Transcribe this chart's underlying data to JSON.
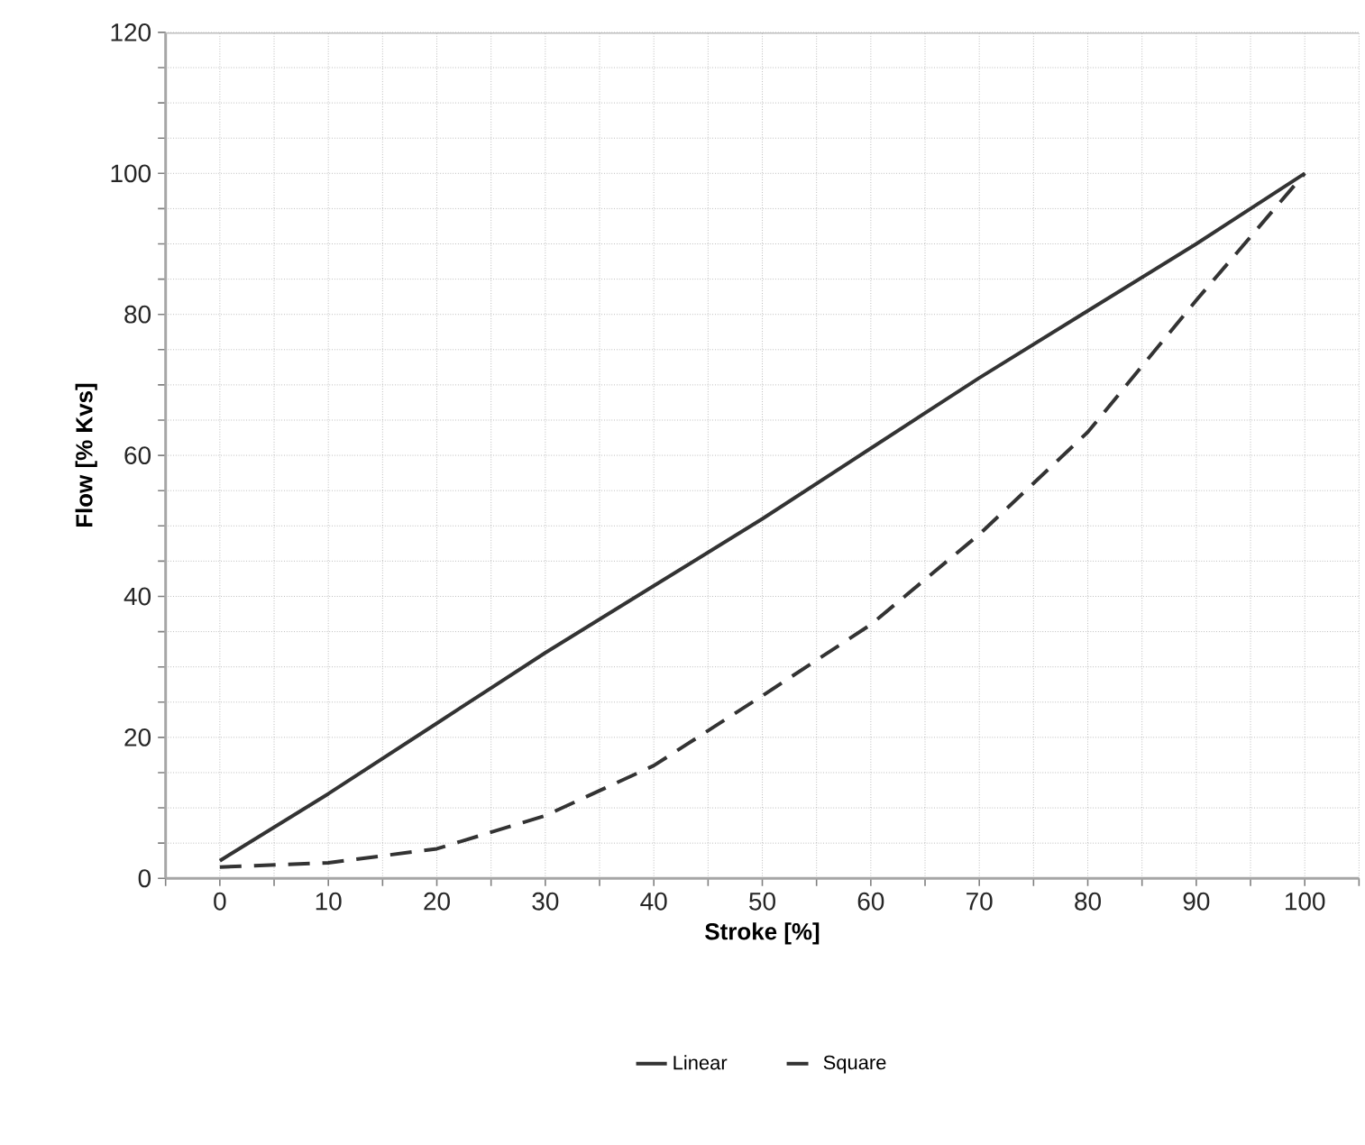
{
  "chart_data": {
    "type": "line",
    "xlabel": "Stroke [%]",
    "ylabel": "Flow [% Kvs]",
    "x": [
      0,
      10,
      20,
      30,
      40,
      50,
      60,
      70,
      80,
      90,
      100
    ],
    "series": [
      {
        "name": "Linear",
        "color": "#333333",
        "line_style": "solid",
        "values": [
          2.5,
          12,
          22,
          32,
          41.5,
          51,
          61,
          71,
          80.5,
          90,
          100
        ]
      },
      {
        "name": "Square",
        "color": "#333333",
        "line_style": "dashed",
        "values": [
          1.6,
          2.2,
          4.2,
          8.9,
          16,
          25.9,
          36,
          48.8,
          63.3,
          82,
          100
        ]
      }
    ],
    "xlim": [
      -5,
      105
    ],
    "xticks": [
      {
        "value": -5,
        "label": null
      },
      0,
      {
        "value": 5,
        "label": null
      },
      10,
      {
        "value": 15,
        "label": null
      },
      20,
      {
        "value": 25,
        "label": null
      },
      30,
      {
        "value": 35,
        "label": null
      },
      40,
      {
        "value": 45,
        "label": null
      },
      50,
      {
        "value": 55,
        "label": null
      },
      60,
      {
        "value": 65,
        "label": null
      },
      70,
      {
        "value": 75,
        "label": null
      },
      80,
      {
        "value": 85,
        "label": null
      },
      90,
      {
        "value": 95,
        "label": null
      },
      100,
      {
        "value": 105,
        "label": null
      }
    ],
    "ylim": [
      0,
      120
    ],
    "yticks": [
      0,
      {
        "value": 5,
        "label": null
      },
      {
        "value": 10,
        "label": null
      },
      {
        "value": 15,
        "label": null
      },
      20,
      {
        "value": 25,
        "label": null
      },
      {
        "value": 30,
        "label": null
      },
      {
        "value": 35,
        "label": null
      },
      40,
      {
        "value": 45,
        "label": null
      },
      {
        "value": 50,
        "label": null
      },
      {
        "value": 55,
        "label": null
      },
      60,
      {
        "value": 65,
        "label": null
      },
      {
        "value": 70,
        "label": null
      },
      {
        "value": 75,
        "label": null
      },
      80,
      {
        "value": 85,
        "label": null
      },
      {
        "value": 90,
        "label": null
      },
      {
        "value": 95,
        "label": null
      },
      100,
      {
        "value": 105,
        "label": null
      },
      {
        "value": 110,
        "label": null
      },
      {
        "value": 115,
        "label": null
      },
      120
    ],
    "grid": true,
    "legend": "bottom",
    "marker": "none"
  }
}
